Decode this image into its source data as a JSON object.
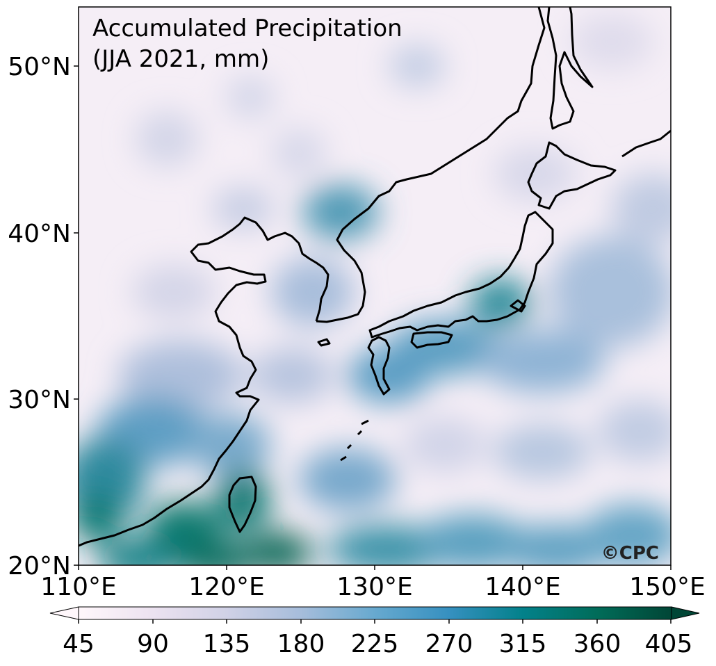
{
  "title_line1": "Accumulated Precipitation",
  "title_line2": "(JJA 2021, mm)",
  "watermark": "©CPC",
  "lat_ticks": [
    "50°N",
    "40°N",
    "30°N",
    "20°N"
  ],
  "lon_ticks": [
    "110°E",
    "120°E",
    "130°E",
    "140°E",
    "150°E"
  ],
  "colorbar": {
    "ticks": [
      "45",
      "90",
      "135",
      "180",
      "225",
      "270",
      "315",
      "360",
      "405"
    ],
    "extend": "both",
    "colors": [
      "#fff7fb",
      "#ece2f0",
      "#d0d1e6",
      "#a6bddb",
      "#67a9cf",
      "#3690c0",
      "#02818a",
      "#016c59",
      "#014636"
    ]
  }
}
